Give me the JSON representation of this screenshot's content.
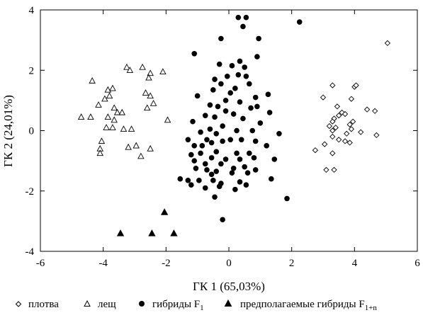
{
  "chart_data": {
    "type": "scatter",
    "xlabel": "ГК 1 (65,03%)",
    "ylabel": "ГК 2 (24,01%)",
    "xlim": [
      -6,
      6
    ],
    "ylim": [
      -4,
      4
    ],
    "x_ticks": [
      -6,
      -4,
      -2,
      0,
      2,
      4,
      6
    ],
    "y_ticks": [
      -4,
      -2,
      0,
      2,
      4
    ],
    "x_tick_labels": [
      "-6",
      "-4",
      "-2",
      "0",
      "2",
      "4",
      "6"
    ],
    "y_tick_labels": [
      "-4",
      "-2",
      "0",
      "2",
      "4"
    ],
    "grid": false,
    "legend_position": "bottom",
    "series": [
      {
        "name": "плотва",
        "marker": "diamond-open",
        "points": [
          [
            5.05,
            2.9
          ],
          [
            3.3,
            1.5
          ],
          [
            4.0,
            1.45
          ],
          [
            4.05,
            1.5
          ],
          [
            3.0,
            1.1
          ],
          [
            3.9,
            1.05
          ],
          [
            3.45,
            0.8
          ],
          [
            3.6,
            0.6
          ],
          [
            3.5,
            0.5
          ],
          [
            3.7,
            0.55
          ],
          [
            3.35,
            0.4
          ],
          [
            3.3,
            0.3
          ],
          [
            4.4,
            0.7
          ],
          [
            4.65,
            0.65
          ],
          [
            3.2,
            0.15
          ],
          [
            3.4,
            0.1
          ],
          [
            3.3,
            0.0
          ],
          [
            3.85,
            0.2
          ],
          [
            3.95,
            0.3
          ],
          [
            3.75,
            -0.1
          ],
          [
            3.9,
            0.05
          ],
          [
            4.2,
            -0.05
          ],
          [
            3.3,
            -0.2
          ],
          [
            3.5,
            -0.3
          ],
          [
            3.7,
            -0.35
          ],
          [
            4.7,
            -0.15
          ],
          [
            2.75,
            -0.65
          ],
          [
            3.05,
            -0.45
          ],
          [
            3.3,
            -0.75
          ],
          [
            3.85,
            -0.4
          ],
          [
            3.1,
            -1.3
          ],
          [
            3.35,
            -1.3
          ]
        ]
      },
      {
        "name": "лещ",
        "marker": "triangle-open",
        "points": [
          [
            -3.25,
            2.1
          ],
          [
            -3.15,
            2.0
          ],
          [
            -2.75,
            2.1
          ],
          [
            -2.5,
            1.9
          ],
          [
            -2.55,
            1.75
          ],
          [
            -2.1,
            1.95
          ],
          [
            -4.35,
            1.65
          ],
          [
            -3.85,
            1.35
          ],
          [
            -3.7,
            1.4
          ],
          [
            -3.8,
            1.15
          ],
          [
            -3.95,
            1.05
          ],
          [
            -2.65,
            1.25
          ],
          [
            -2.5,
            1.15
          ],
          [
            -4.15,
            0.85
          ],
          [
            -3.65,
            0.75
          ],
          [
            -2.4,
            0.9
          ],
          [
            -2.6,
            0.75
          ],
          [
            -3.55,
            0.6
          ],
          [
            -3.4,
            0.6
          ],
          [
            -3.85,
            0.45
          ],
          [
            -4.4,
            0.45
          ],
          [
            -4.7,
            0.45
          ],
          [
            -3.65,
            0.35
          ],
          [
            -3.9,
            0.1
          ],
          [
            -3.7,
            0.1
          ],
          [
            -3.35,
            0.05
          ],
          [
            -3.1,
            0.05
          ],
          [
            -1.95,
            0.35
          ],
          [
            -4.05,
            -0.35
          ],
          [
            -4.1,
            -0.6
          ],
          [
            -4.1,
            -0.75
          ],
          [
            -3.2,
            -0.55
          ],
          [
            -2.95,
            -0.5
          ],
          [
            -2.5,
            -0.6
          ],
          [
            -2.8,
            -0.85
          ]
        ]
      },
      {
        "name": "гибриды F1",
        "marker": "circle-filled",
        "points": [
          [
            0.3,
            3.75
          ],
          [
            0.55,
            3.75
          ],
          [
            2.25,
            3.6
          ],
          [
            0.45,
            3.45
          ],
          [
            -0.25,
            3.05
          ],
          [
            0.95,
            3.05
          ],
          [
            -1.1,
            2.55
          ],
          [
            0.9,
            2.45
          ],
          [
            0.35,
            2.3
          ],
          [
            -0.3,
            2.2
          ],
          [
            0.1,
            2.15
          ],
          [
            0.5,
            2.1
          ],
          [
            0.3,
            1.85
          ],
          [
            0.55,
            1.8
          ],
          [
            -0.05,
            1.8
          ],
          [
            -0.45,
            1.7
          ],
          [
            -0.25,
            1.55
          ],
          [
            0.65,
            1.55
          ],
          [
            0.2,
            1.4
          ],
          [
            -0.5,
            1.35
          ],
          [
            0.05,
            1.25
          ],
          [
            1.25,
            1.2
          ],
          [
            -1.0,
            1.15
          ],
          [
            0.85,
            1.1
          ],
          [
            -0.1,
            1.0
          ],
          [
            0.35,
            0.95
          ],
          [
            -0.6,
            0.85
          ],
          [
            -0.35,
            0.8
          ],
          [
            0.7,
            0.75
          ],
          [
            0.9,
            0.8
          ],
          [
            -0.1,
            0.65
          ],
          [
            0.15,
            0.55
          ],
          [
            1.3,
            0.6
          ],
          [
            -0.75,
            0.5
          ],
          [
            -0.45,
            0.45
          ],
          [
            0.45,
            0.4
          ],
          [
            -1.15,
            0.3
          ],
          [
            1.0,
            0.25
          ],
          [
            -0.2,
            0.15
          ],
          [
            -0.6,
            0.05
          ],
          [
            0.25,
            0.0
          ],
          [
            0.75,
            0.0
          ],
          [
            -0.9,
            -0.05
          ],
          [
            -0.4,
            -0.1
          ],
          [
            1.6,
            -0.1
          ],
          [
            -1.3,
            -0.3
          ],
          [
            -0.7,
            -0.3
          ],
          [
            0.05,
            -0.3
          ],
          [
            0.4,
            -0.3
          ],
          [
            0.85,
            -0.35
          ],
          [
            -1.1,
            -0.5
          ],
          [
            -0.85,
            -0.5
          ],
          [
            -0.55,
            -0.4
          ],
          [
            -0.2,
            -0.35
          ],
          [
            1.2,
            -0.5
          ],
          [
            -1.2,
            -0.8
          ],
          [
            -0.9,
            -0.75
          ],
          [
            -0.4,
            -0.7
          ],
          [
            0.25,
            -0.75
          ],
          [
            0.65,
            -0.75
          ],
          [
            1.45,
            -0.95
          ],
          [
            -1.1,
            -1.0
          ],
          [
            -0.55,
            -0.9
          ],
          [
            -0.1,
            -0.95
          ],
          [
            0.35,
            -0.95
          ],
          [
            0.8,
            -0.9
          ],
          [
            -0.75,
            -1.1
          ],
          [
            -0.25,
            -1.1
          ],
          [
            0.5,
            -1.2
          ],
          [
            -1.05,
            -1.25
          ],
          [
            -0.7,
            -1.3
          ],
          [
            -0.4,
            -1.35
          ],
          [
            0.15,
            -1.25
          ],
          [
            0.85,
            -1.3
          ],
          [
            -0.55,
            -1.45
          ],
          [
            0.1,
            -1.4
          ],
          [
            0.6,
            -1.4
          ],
          [
            1.35,
            -1.6
          ],
          [
            -1.55,
            -1.6
          ],
          [
            -1.3,
            -1.65
          ],
          [
            -0.95,
            -1.65
          ],
          [
            -0.5,
            -1.65
          ],
          [
            -0.25,
            -1.75
          ],
          [
            0.35,
            -1.7
          ],
          [
            -1.2,
            -1.8
          ],
          [
            -0.3,
            -1.85
          ],
          [
            0.55,
            -1.8
          ],
          [
            -0.75,
            -1.9
          ],
          [
            0.2,
            -1.95
          ],
          [
            -0.45,
            -2.2
          ],
          [
            1.85,
            -2.25
          ],
          [
            -0.2,
            -2.95
          ]
        ]
      },
      {
        "name": "предполагаемые гибриды F1+n",
        "marker": "triangle-filled",
        "points": [
          [
            -2.05,
            -2.7
          ],
          [
            -3.45,
            -3.4
          ],
          [
            -2.45,
            -3.4
          ],
          [
            -1.75,
            -3.4
          ]
        ]
      }
    ]
  },
  "legend": {
    "items": [
      {
        "label": "плотва",
        "sub": ""
      },
      {
        "label": "лещ",
        "sub": ""
      },
      {
        "label": "гибриды F",
        "sub": "1"
      },
      {
        "label": "предполагаемые гибриды F",
        "sub": "1+n"
      }
    ]
  }
}
